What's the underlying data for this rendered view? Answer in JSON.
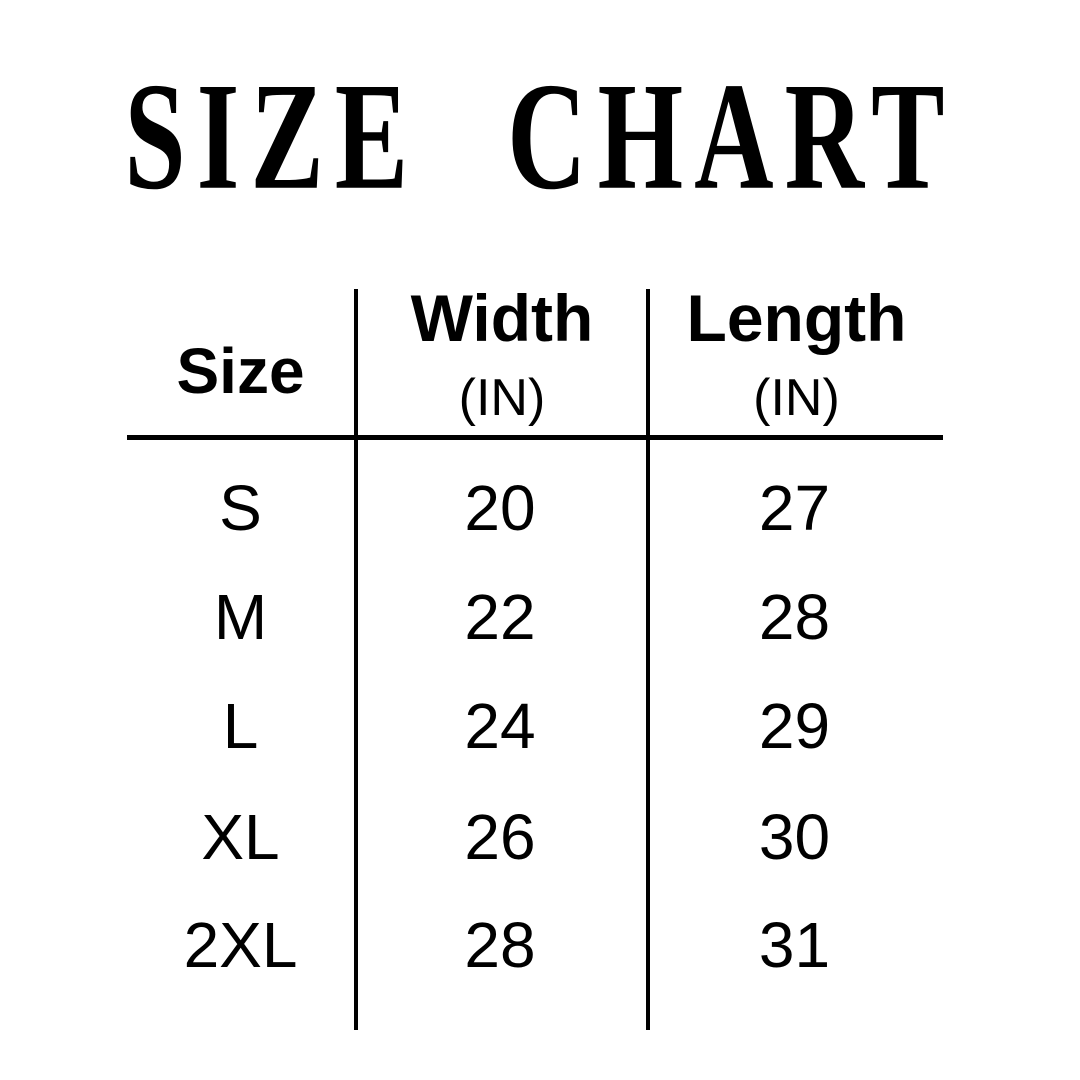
{
  "title": "SIZE CHART",
  "colors": {
    "ink": "#000000",
    "background": "#ffffff"
  },
  "table": {
    "size_header": "Size",
    "width_header": "Width",
    "width_unit": "(IN)",
    "length_header": "Length",
    "length_unit": "(IN)",
    "rows": [
      {
        "size": "S",
        "width": "20",
        "length": "27"
      },
      {
        "size": "M",
        "width": "22",
        "length": "28"
      },
      {
        "size": "L",
        "width": "24",
        "length": "29"
      },
      {
        "size": "XL",
        "width": "26",
        "length": "30"
      },
      {
        "size": "2XL",
        "width": "28",
        "length": "31"
      }
    ]
  },
  "chart_data": {
    "type": "table",
    "title": "SIZE CHART",
    "columns": [
      "Size",
      "Width (IN)",
      "Length (IN)"
    ],
    "rows": [
      [
        "S",
        20,
        27
      ],
      [
        "M",
        22,
        28
      ],
      [
        "L",
        24,
        29
      ],
      [
        "XL",
        26,
        30
      ],
      [
        "2XL",
        28,
        31
      ]
    ],
    "layout_hints": {
      "grid": "vertical dividers between columns, single horizontal rule under header",
      "text_color": "#000000",
      "background": "#ffffff"
    }
  }
}
